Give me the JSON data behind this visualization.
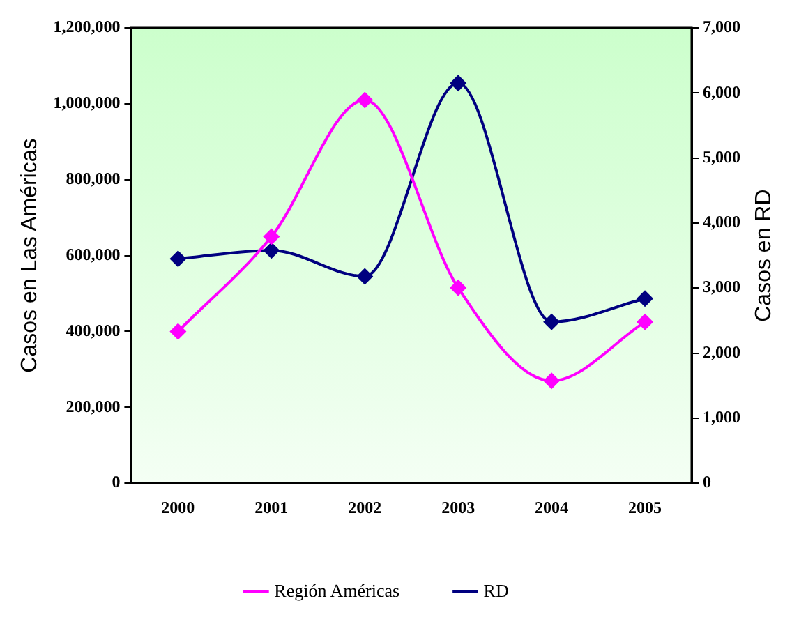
{
  "chart_data": {
    "type": "line",
    "ylabel": "Casos en Las Américas",
    "y2label": "Casos en RD",
    "categories": [
      "2000",
      "2001",
      "2002",
      "2003",
      "2004",
      "2005"
    ],
    "series": [
      {
        "name": "Región Américas",
        "color": "#ff00ff",
        "values": [
          400000,
          650000,
          1010000,
          515000,
          270000,
          425000
        ]
      },
      {
        "name": "RD",
        "color": "#000080",
        "axis": "y2",
        "values": [
          3450,
          3580,
          3180,
          6150,
          2480,
          2840
        ]
      }
    ],
    "ylim": [
      0,
      1200000
    ],
    "yticks": [
      {
        "value": 0,
        "label": "0"
      },
      {
        "value": 200000,
        "label": "200,000"
      },
      {
        "value": 400000,
        "label": "400,000"
      },
      {
        "value": 600000,
        "label": "600,000"
      },
      {
        "value": 800000,
        "label": "800,000"
      },
      {
        "value": 1000000,
        "label": "1,000,000"
      },
      {
        "value": 1200000,
        "label": "1,200,000"
      }
    ],
    "y2lim": [
      0,
      7000
    ],
    "y2ticks": [
      {
        "value": 0,
        "label": "0"
      },
      {
        "value": 1000,
        "label": "1,000"
      },
      {
        "value": 2000,
        "label": "2,000"
      },
      {
        "value": 3000,
        "label": "3,000"
      },
      {
        "value": 4000,
        "label": "4,000"
      },
      {
        "value": 5000,
        "label": "5,000"
      },
      {
        "value": 6000,
        "label": "6,000"
      },
      {
        "value": 7000,
        "label": "7,000"
      }
    ],
    "grid": false,
    "legend": "bottom",
    "marker": "diamond",
    "line_style": "solid"
  }
}
